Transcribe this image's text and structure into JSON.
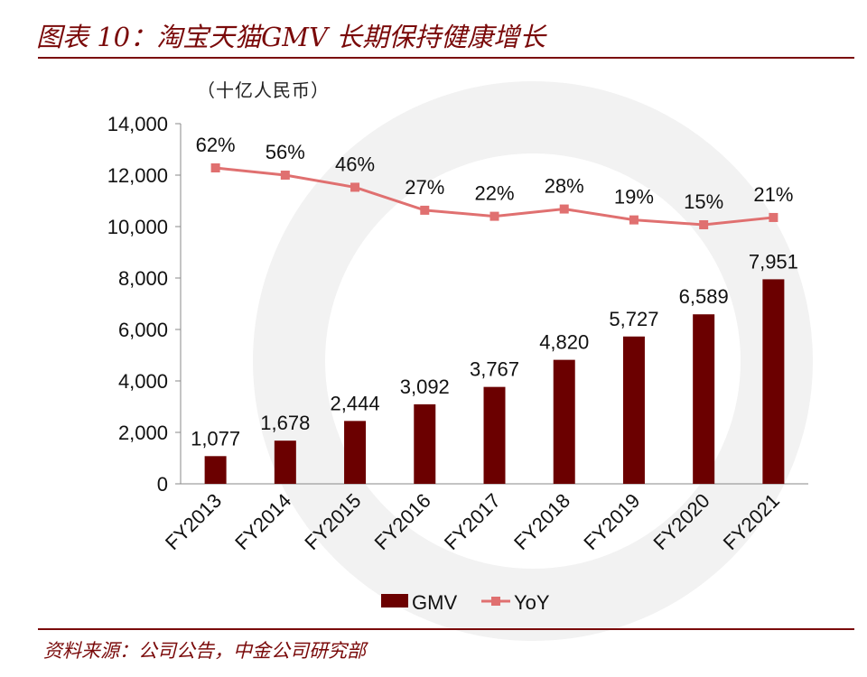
{
  "title": "图表 10：淘宝天猫GMV 长期保持健康增长",
  "unit": "（十亿人民币）",
  "source": "资料来源：公司公告，中金公司研究部",
  "chart_data": {
    "type": "bar",
    "categories": [
      "FY2013",
      "FY2014",
      "FY2015",
      "FY2016",
      "FY2017",
      "FY2018",
      "FY2019",
      "FY2020",
      "FY2021"
    ],
    "series": [
      {
        "name": "GMV",
        "type": "bar",
        "values": [
          1077,
          1678,
          2444,
          3092,
          3767,
          4820,
          5727,
          6589,
          7951
        ],
        "labels": [
          "1,077",
          "1,678",
          "2,444",
          "3,092",
          "3,767",
          "4,820",
          "5,727",
          "6,589",
          "7,951"
        ],
        "color": "#6b0000"
      },
      {
        "name": "YoY",
        "type": "line",
        "values": [
          62,
          56,
          46,
          27,
          22,
          28,
          19,
          15,
          21
        ],
        "labels": [
          "62%",
          "56%",
          "46%",
          "27%",
          "22%",
          "28%",
          "19%",
          "15%",
          "21%"
        ],
        "color": "#e07070"
      }
    ],
    "ylim": [
      0,
      14000
    ],
    "yticks": [
      "0",
      "2,000",
      "4,000",
      "6,000",
      "8,000",
      "10,000",
      "12,000",
      "14,000"
    ],
    "legend": "bottom"
  }
}
